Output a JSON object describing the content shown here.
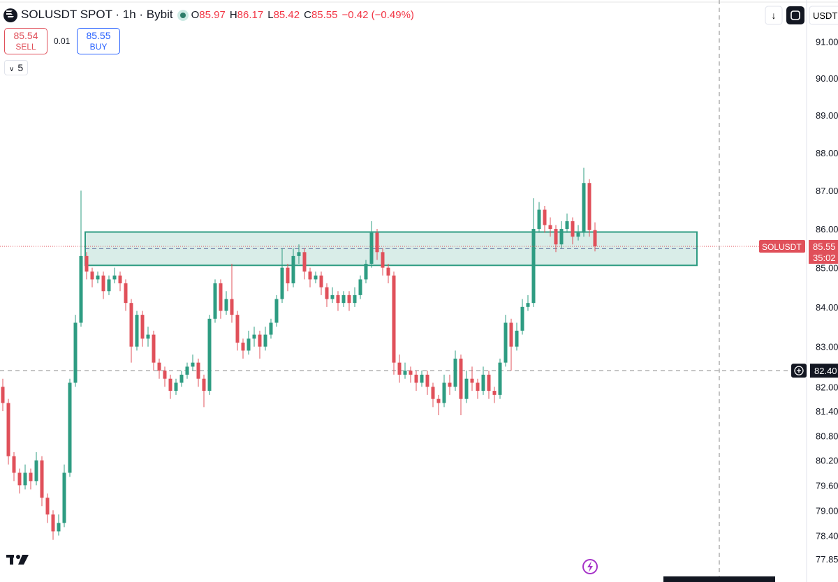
{
  "chart_data": {
    "type": "candlestick",
    "title": "SOLUSDT SPOT · 1h · Bybit",
    "legend": [
      {
        "key": "O",
        "text": "85.97"
      },
      {
        "key": "H",
        "text": "86.17"
      },
      {
        "key": "L",
        "text": "85.42"
      },
      {
        "key": "C",
        "text": "85.55"
      }
    ],
    "change": "−0.42 (−0.49%)",
    "sell": {
      "price": "85.54",
      "label": "SELL"
    },
    "spread": "0.01",
    "buy": {
      "price": "85.55",
      "label": "BUY"
    },
    "indicators": "5",
    "currency": "USDT",
    "log_scale": true,
    "up_color": "#2e9c82",
    "down_color": "#e0505a",
    "ylim": [
      77.31,
      92.15
    ],
    "yticks": [
      {
        "value": 91,
        "label": "91.00"
      },
      {
        "value": 90,
        "label": "90.00"
      },
      {
        "value": 89,
        "label": "89.00"
      },
      {
        "value": 88,
        "label": "88.00"
      },
      {
        "value": 87,
        "label": "87.00"
      },
      {
        "value": 86,
        "label": "86.00"
      },
      {
        "value": 85,
        "label": "85.00"
      },
      {
        "value": 84,
        "label": "84.00"
      },
      {
        "value": 83,
        "label": "83.00"
      },
      {
        "value": 82,
        "label": "82.00"
      },
      {
        "value": 81.4,
        "label": "81.40"
      },
      {
        "value": 80.8,
        "label": "80.80"
      },
      {
        "value": 80.2,
        "label": "80.20"
      },
      {
        "value": 79.6,
        "label": "79.60"
      },
      {
        "value": 79,
        "label": "79.00"
      },
      {
        "value": 78.4,
        "label": "78.40"
      },
      {
        "value": 77.85,
        "label": "77.85"
      }
    ],
    "last_price": {
      "symbol": "SOLUSDT",
      "value": 85.55,
      "label": "85.55",
      "countdown": "35:02"
    },
    "crosshair": {
      "value": 82.4,
      "label": "82.40"
    },
    "zone": [
      85.06,
      85.92
    ],
    "series": {
      "open": [
        82.0,
        81.6,
        80.3,
        79.9,
        79.6,
        79.9,
        79.7,
        80.2,
        79.3,
        78.9,
        78.5,
        78.7,
        79.9,
        82.1,
        83.6,
        85.3,
        84.9,
        84.7,
        84.8,
        84.4,
        84.7,
        84.8,
        84.6,
        84.1,
        83.0,
        83.8,
        83.2,
        83.3,
        82.6,
        82.4,
        82.2,
        81.9,
        82.1,
        82.3,
        82.5,
        82.6,
        82.2,
        81.9,
        83.7,
        84.6,
        83.9,
        84.2,
        83.8,
        83.1,
        82.9,
        83.2,
        83.3,
        83.0,
        83.3,
        83.6,
        84.2,
        85.0,
        84.6,
        85.3,
        85.4,
        84.9,
        84.7,
        84.8,
        84.5,
        84.2,
        84.3,
        84.1,
        84.3,
        84.1,
        84.3,
        84.7,
        85.1,
        85.9,
        85.4,
        85.0,
        84.8,
        82.6,
        82.3,
        82.4,
        82.3,
        82.1,
        82.3,
        82.0,
        81.7,
        81.6,
        82.1,
        82.0,
        82.7,
        81.7,
        82.2,
        82.1,
        81.9,
        82.3,
        81.9,
        81.8,
        82.6,
        83.6,
        83.0,
        83.4,
        84.0,
        84.1,
        86.0,
        86.5,
        86.1,
        86.0,
        85.6,
        86.0,
        86.2,
        85.8,
        85.9,
        87.2,
        85.97
      ],
      "high": [
        82.2,
        81.7,
        80.4,
        80.0,
        80.1,
        80.0,
        80.4,
        80.3,
        79.4,
        79.0,
        78.9,
        80.1,
        82.2,
        83.8,
        87.0,
        85.4,
        85.0,
        84.9,
        84.9,
        84.8,
        85.0,
        84.9,
        84.7,
        84.2,
        83.9,
        83.9,
        83.5,
        83.4,
        82.7,
        82.5,
        82.3,
        82.2,
        82.4,
        82.6,
        82.8,
        82.7,
        82.3,
        83.8,
        84.7,
        84.7,
        84.4,
        85.1,
        83.9,
        83.2,
        83.4,
        83.5,
        83.4,
        83.5,
        83.7,
        84.3,
        85.5,
        85.1,
        85.5,
        85.6,
        85.5,
        85.0,
        84.9,
        84.9,
        84.6,
        84.5,
        84.4,
        84.4,
        84.4,
        84.5,
        84.8,
        85.2,
        86.2,
        86.0,
        85.5,
        85.1,
        84.9,
        82.8,
        82.6,
        82.5,
        82.4,
        82.4,
        82.4,
        82.1,
        81.8,
        82.3,
        82.3,
        82.9,
        82.8,
        82.4,
        82.5,
        82.2,
        82.5,
        82.4,
        82.0,
        82.7,
        83.8,
        83.7,
        83.6,
        84.2,
        84.3,
        86.8,
        86.7,
        86.6,
        86.3,
        86.1,
        86.2,
        86.4,
        86.3,
        86.1,
        87.6,
        87.3,
        86.17
      ],
      "low": [
        81.4,
        80.1,
        79.7,
        79.4,
        79.5,
        79.5,
        79.6,
        79.1,
        78.7,
        78.3,
        78.4,
        78.6,
        79.8,
        82.0,
        83.5,
        84.7,
        84.5,
        84.6,
        84.2,
        84.3,
        84.6,
        84.4,
        83.9,
        82.6,
        82.9,
        83.0,
        83.0,
        82.4,
        82.2,
        82.0,
        81.7,
        81.8,
        82.0,
        82.2,
        82.4,
        82.0,
        81.5,
        81.8,
        83.6,
        83.7,
        83.8,
        83.6,
        82.9,
        82.7,
        82.8,
        83.0,
        82.7,
        82.9,
        83.2,
        83.5,
        84.1,
        84.4,
        84.5,
        85.1,
        84.7,
        84.5,
        84.6,
        84.3,
        84.0,
        84.1,
        83.9,
        84.0,
        83.9,
        84.0,
        84.2,
        84.6,
        85.0,
        85.2,
        84.8,
        84.6,
        82.3,
        82.1,
        82.2,
        82.1,
        81.9,
        82.0,
        81.8,
        81.5,
        81.3,
        81.5,
        81.8,
        81.9,
        81.3,
        81.6,
        81.9,
        81.7,
        81.8,
        81.7,
        81.6,
        81.7,
        82.5,
        82.4,
        82.9,
        83.3,
        83.9,
        84.0,
        85.9,
        85.9,
        85.8,
        85.4,
        85.5,
        85.9,
        85.6,
        85.7,
        85.8,
        85.8,
        85.42
      ],
      "close": [
        81.6,
        80.3,
        79.9,
        79.6,
        79.9,
        79.7,
        80.2,
        79.3,
        78.9,
        78.5,
        78.7,
        79.9,
        82.1,
        83.6,
        85.3,
        84.9,
        84.7,
        84.8,
        84.4,
        84.7,
        84.8,
        84.6,
        84.1,
        83.0,
        83.8,
        83.2,
        83.3,
        82.6,
        82.4,
        82.2,
        81.9,
        82.1,
        82.3,
        82.5,
        82.6,
        82.2,
        81.9,
        83.7,
        84.6,
        83.9,
        84.2,
        83.8,
        83.1,
        82.9,
        83.2,
        83.3,
        83.0,
        83.3,
        83.6,
        84.2,
        85.0,
        84.6,
        85.3,
        85.4,
        84.9,
        84.7,
        84.8,
        84.5,
        84.2,
        84.3,
        84.1,
        84.3,
        84.1,
        84.3,
        84.7,
        85.1,
        85.9,
        85.4,
        85.0,
        84.8,
        82.6,
        82.3,
        82.4,
        82.3,
        82.1,
        82.3,
        82.0,
        81.7,
        81.6,
        82.1,
        82.0,
        82.7,
        81.7,
        82.2,
        82.1,
        81.9,
        82.3,
        81.9,
        81.8,
        82.6,
        83.6,
        83.0,
        83.4,
        84.0,
        84.1,
        86.0,
        86.5,
        86.1,
        86.0,
        85.6,
        86.0,
        86.2,
        85.8,
        85.9,
        87.2,
        85.97,
        85.55
      ]
    }
  }
}
